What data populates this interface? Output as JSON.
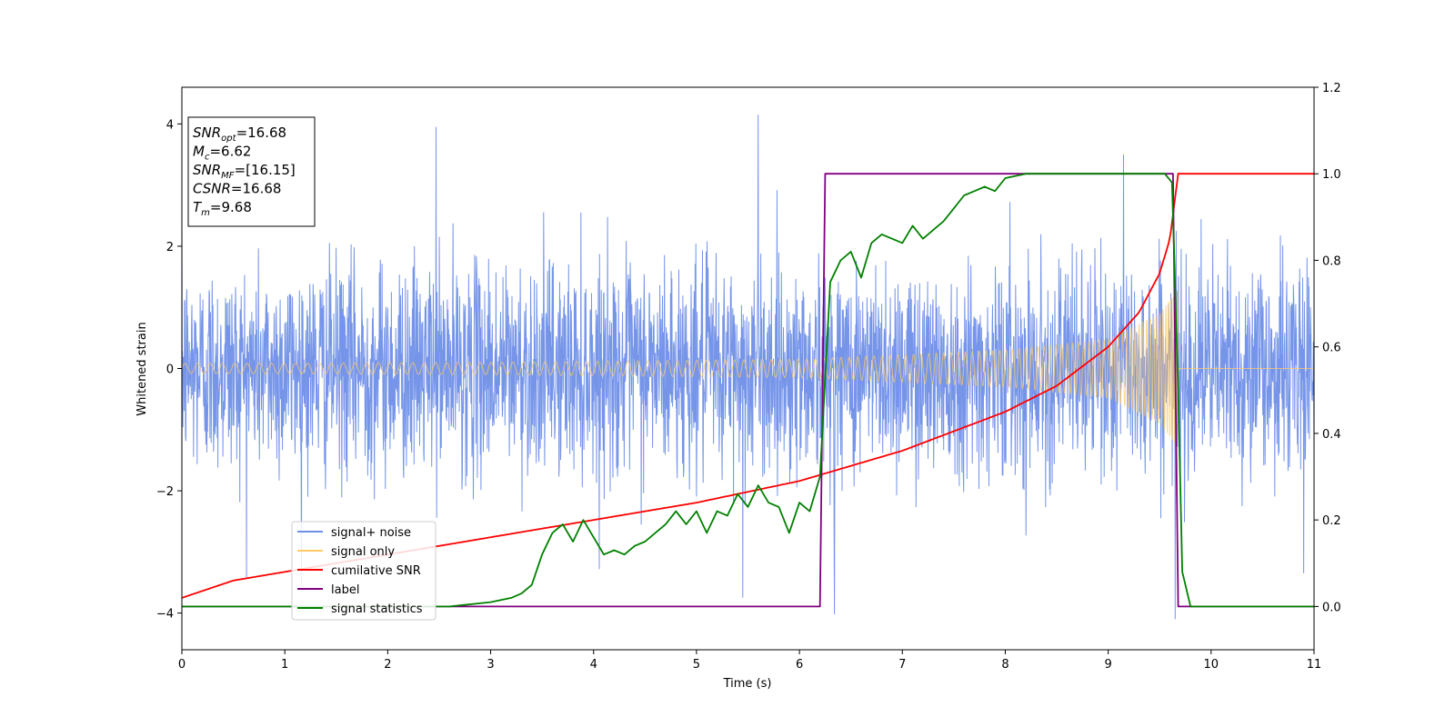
{
  "chart_data": {
    "type": "line",
    "xlabel": "Time (s)",
    "ylabel": "Whitened strain",
    "xlim": [
      0,
      11
    ],
    "ylim_left": [
      -4.6,
      4.6
    ],
    "ylim_right": [
      -0.1,
      1.2
    ],
    "x_ticks": [
      0,
      1,
      2,
      3,
      4,
      5,
      6,
      7,
      8,
      9,
      10,
      11
    ],
    "y_ticks_left": [
      -4,
      -2,
      0,
      2,
      4
    ],
    "y_ticks_right": [
      0.0,
      0.2,
      0.4,
      0.6,
      0.8,
      1.0,
      1.2
    ],
    "grid": false,
    "legend_position": "lower-left",
    "annotation": {
      "lines": [
        {
          "label": "SNR",
          "sub": "opt",
          "value": "=16.68"
        },
        {
          "label": "M",
          "sub": "c",
          "value": "=6.62"
        },
        {
          "label": "SNR",
          "sub": "MF",
          "value": "=[16.15]"
        },
        {
          "label": "CSNR",
          "sub": "",
          "value": "=16.68"
        },
        {
          "label": "T",
          "sub": "m",
          "value": "=9.68"
        }
      ]
    },
    "series": [
      {
        "name": "signal+ noise",
        "axis": "left",
        "color": "#6f8fe8",
        "kind": "gaussian_noise",
        "std": 0.85,
        "x_range": [
          0,
          11
        ],
        "notable_peaks": [
          [
            2.47,
            3.95
          ],
          [
            5.6,
            4.15
          ],
          [
            9.15,
            3.5
          ],
          [
            5.45,
            -3.75
          ],
          [
            6.34,
            -4.02
          ],
          [
            9.65,
            -4.1
          ],
          [
            10.9,
            -3.35
          ]
        ]
      },
      {
        "name": "signal only",
        "axis": "left",
        "color": "#ffc966",
        "kind": "chirp",
        "merger_time": 9.68,
        "amplitude_envelope": [
          [
            0,
            0.08
          ],
          [
            3,
            0.1
          ],
          [
            6,
            0.15
          ],
          [
            8,
            0.3
          ],
          [
            9,
            0.48
          ],
          [
            9.5,
            0.9
          ],
          [
            9.68,
            1.3
          ],
          [
            9.7,
            0
          ]
        ]
      },
      {
        "name": "cumilative SNR",
        "axis": "right",
        "color": "#ff0000",
        "x": [
          0,
          0.5,
          1,
          2,
          3,
          4,
          5,
          6,
          7,
          8,
          8.5,
          9,
          9.3,
          9.5,
          9.6,
          9.68,
          11
        ],
        "y": [
          0.02,
          0.06,
          0.08,
          0.12,
          0.16,
          0.2,
          0.24,
          0.29,
          0.36,
          0.45,
          0.51,
          0.6,
          0.68,
          0.77,
          0.85,
          1.0,
          1.0
        ]
      },
      {
        "name": "label",
        "axis": "right",
        "color": "#800080",
        "x": [
          0,
          6.2,
          6.25,
          9.63,
          9.68,
          11
        ],
        "y": [
          0,
          0,
          1,
          1,
          0,
          0
        ]
      },
      {
        "name": "signal statistics",
        "axis": "right",
        "color": "#008000",
        "x": [
          0,
          1,
          2,
          2.6,
          3,
          3.2,
          3.3,
          3.4,
          3.5,
          3.6,
          3.7,
          3.8,
          3.9,
          4.0,
          4.1,
          4.2,
          4.3,
          4.4,
          4.5,
          4.6,
          4.7,
          4.8,
          4.9,
          5.0,
          5.1,
          5.2,
          5.3,
          5.4,
          5.5,
          5.6,
          5.7,
          5.8,
          5.9,
          6.0,
          6.1,
          6.2,
          6.3,
          6.4,
          6.5,
          6.6,
          6.7,
          6.8,
          6.9,
          7.0,
          7.1,
          7.2,
          7.3,
          7.4,
          7.5,
          7.6,
          7.7,
          7.8,
          7.9,
          8.0,
          8.2,
          8.5,
          9.0,
          9.4,
          9.55,
          9.62,
          9.68,
          9.72,
          9.8,
          10.0,
          11.0
        ],
        "y": [
          0.0,
          0.0,
          0.0,
          0.0,
          0.01,
          0.02,
          0.03,
          0.05,
          0.12,
          0.17,
          0.19,
          0.15,
          0.2,
          0.16,
          0.12,
          0.13,
          0.12,
          0.14,
          0.15,
          0.17,
          0.19,
          0.22,
          0.19,
          0.22,
          0.17,
          0.22,
          0.21,
          0.26,
          0.23,
          0.28,
          0.24,
          0.23,
          0.17,
          0.24,
          0.22,
          0.3,
          0.75,
          0.8,
          0.82,
          0.76,
          0.84,
          0.86,
          0.85,
          0.84,
          0.88,
          0.85,
          0.87,
          0.89,
          0.92,
          0.95,
          0.96,
          0.97,
          0.96,
          0.99,
          1.0,
          1.0,
          1.0,
          1.0,
          1.0,
          0.98,
          0.5,
          0.08,
          0.0,
          0.0,
          0.0
        ]
      }
    ]
  }
}
